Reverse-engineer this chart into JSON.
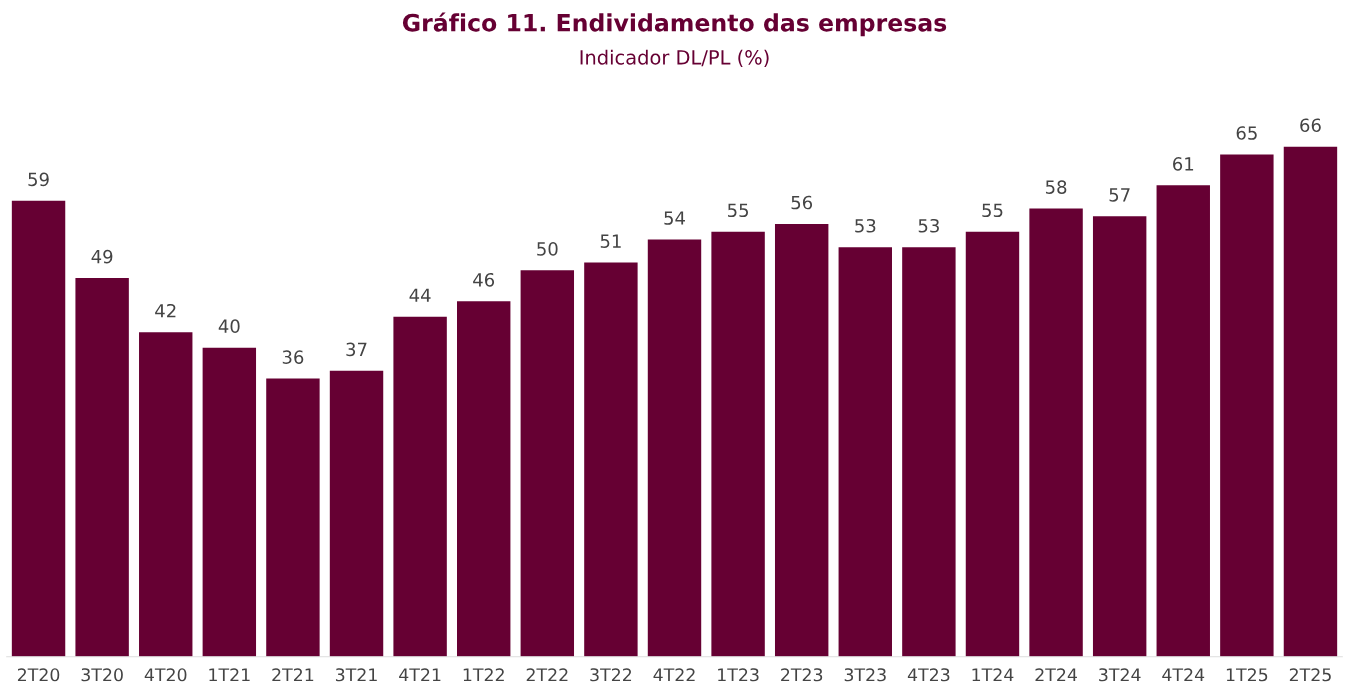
{
  "chart_data": {
    "type": "bar",
    "title": "Gráfico 11. Endividamento das empresas",
    "subtitle": "Indicador DL/PL (%)",
    "categories": [
      "2T20",
      "3T20",
      "4T20",
      "1T21",
      "2T21",
      "3T21",
      "4T21",
      "1T22",
      "2T22",
      "3T22",
      "4T22",
      "1T23",
      "2T23",
      "3T23",
      "4T23",
      "1T24",
      "2T24",
      "3T24",
      "4T24",
      "1T25",
      "2T25"
    ],
    "values": [
      59,
      49,
      42,
      40,
      36,
      37,
      44,
      46,
      50,
      51,
      54,
      55,
      56,
      53,
      53,
      55,
      58,
      57,
      61,
      65,
      66
    ],
    "color": "#660033",
    "data_labels": true,
    "grid": false,
    "legend": false
  }
}
